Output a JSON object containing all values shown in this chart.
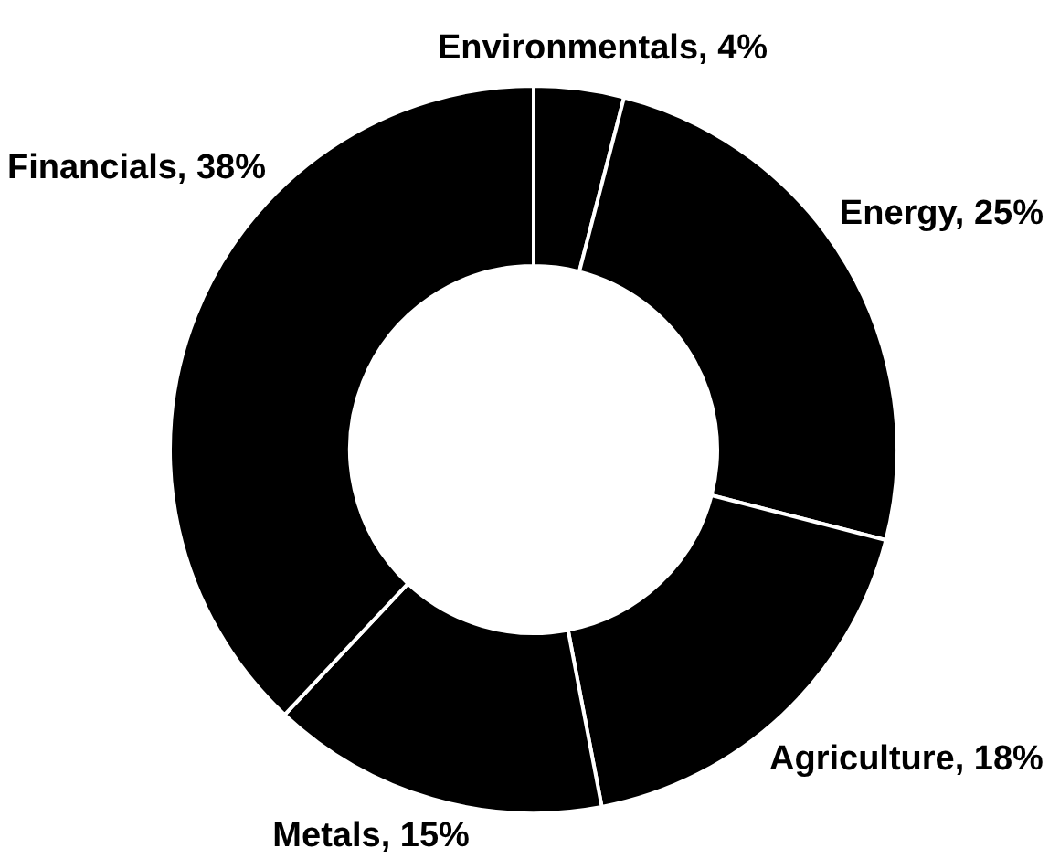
{
  "chart_data": {
    "type": "donut",
    "categories": [
      "Environmentals",
      "Energy",
      "Agriculture",
      "Metals",
      "Financials"
    ],
    "values": [
      4,
      25,
      18,
      15,
      38
    ],
    "colors": [
      "#000000",
      "#000000",
      "#000000",
      "#000000",
      "#000000"
    ],
    "value_labels": [
      "4%",
      "25%",
      "18%",
      "15%",
      "38%"
    ],
    "legend": false
  }
}
